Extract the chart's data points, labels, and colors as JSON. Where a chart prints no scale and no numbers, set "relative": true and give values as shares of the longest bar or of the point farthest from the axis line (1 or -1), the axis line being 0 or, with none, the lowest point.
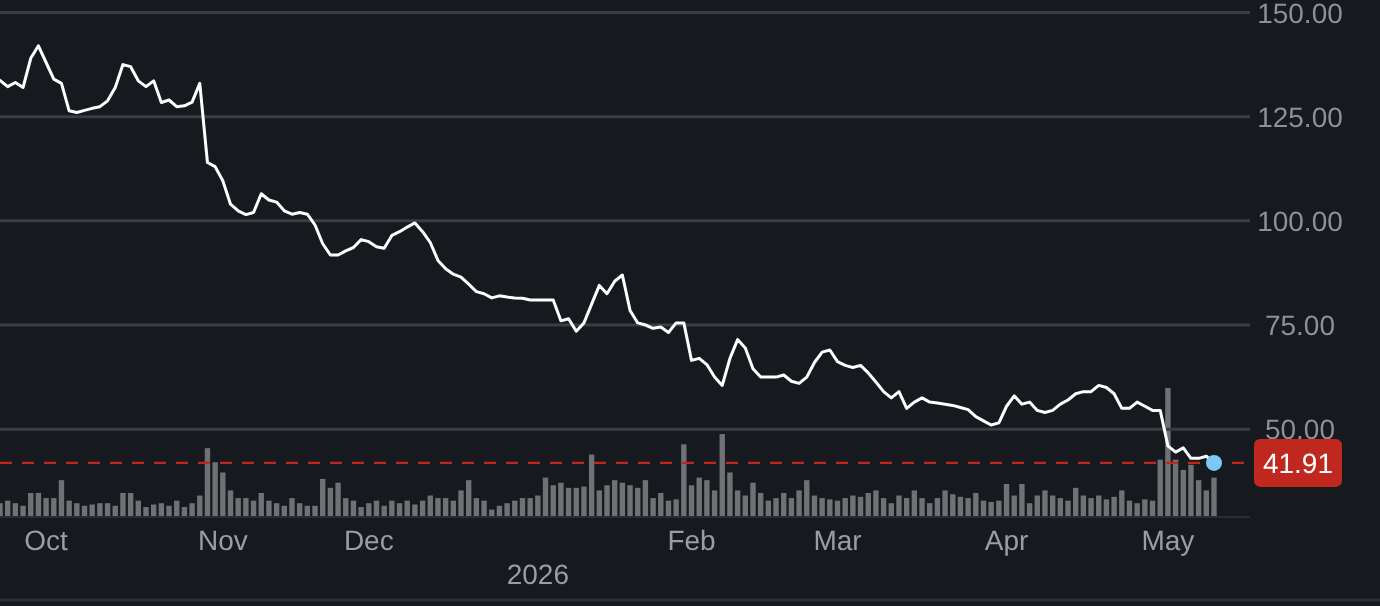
{
  "chart_data": [
    {
      "type": "line",
      "categories": [
        null,
        null,
        null,
        null,
        null,
        null,
        "Oct",
        null,
        null,
        null,
        null,
        null,
        null,
        null,
        null,
        null,
        null,
        null,
        null,
        null,
        null,
        null,
        null,
        null,
        null,
        null,
        null,
        null,
        null,
        "Nov",
        null,
        null,
        null,
        null,
        null,
        null,
        null,
        null,
        null,
        null,
        null,
        null,
        null,
        null,
        null,
        null,
        null,
        null,
        "Dec",
        null,
        null,
        null,
        null,
        null,
        null,
        null,
        null,
        null,
        null,
        null,
        null,
        null,
        null,
        null,
        null,
        null,
        null,
        null,
        null,
        null,
        "2026",
        null,
        null,
        null,
        null,
        null,
        null,
        null,
        null,
        null,
        null,
        null,
        null,
        null,
        null,
        null,
        null,
        null,
        null,
        null,
        "Feb",
        null,
        null,
        null,
        null,
        null,
        null,
        null,
        null,
        null,
        null,
        null,
        null,
        null,
        null,
        null,
        null,
        null,
        null,
        "Mar",
        null,
        null,
        null,
        null,
        null,
        null,
        null,
        null,
        null,
        null,
        null,
        null,
        null,
        null,
        null,
        null,
        null,
        null,
        null,
        null,
        null,
        "Apr",
        null,
        null,
        null,
        null,
        null,
        null,
        null,
        null,
        null,
        null,
        null,
        null,
        null,
        null,
        null,
        null,
        null,
        null,
        null,
        null,
        "May",
        null,
        null,
        null,
        null,
        null,
        null
      ],
      "series": [
        {
          "color": "#ffffff",
          "values": [
            133.7,
            132.2,
            133.2,
            132,
            139,
            142,
            138,
            134,
            133,
            126.4,
            126,
            126.5,
            127,
            127.4,
            128.8,
            132,
            137.5,
            137,
            133.6,
            132.2,
            133.6,
            128.4,
            129,
            127.4,
            127.6,
            128.5,
            133,
            114,
            113,
            109.6,
            104,
            102.4,
            101.5,
            102,
            106.5,
            105,
            104.5,
            102.4,
            101.6,
            102,
            101.6,
            99,
            94.5,
            91.8,
            91.8,
            92.8,
            93.6,
            95.5,
            95,
            93.8,
            93.4,
            96.5,
            97.4,
            98.5,
            99.5,
            97.4,
            94.8,
            90.5,
            88.5,
            87.2,
            86.5,
            84.8,
            83,
            82.5,
            81.5,
            82,
            81.7,
            81.5,
            81.4,
            81,
            81,
            81,
            81,
            76,
            76.5,
            73.5,
            75.5,
            80,
            84.5,
            82.5,
            85.5,
            87,
            78.5,
            75.5,
            75,
            74.2,
            74.5,
            73.2,
            75.5,
            75.5,
            66.5,
            67,
            65.5,
            62.5,
            60.5,
            67,
            71.5,
            69.5,
            64.5,
            62.5,
            62.5,
            62.5,
            63,
            61.5,
            61,
            62.5,
            66,
            68.5,
            69,
            66.2,
            65.3,
            64.8,
            65.3,
            63.5,
            61.3,
            59,
            57.5,
            59,
            55,
            56.5,
            57.5,
            56.5,
            56.3,
            56,
            55.7,
            55.2,
            54.7,
            53,
            52,
            51,
            51.5,
            55.5,
            58,
            56,
            56.5,
            54.5,
            54,
            54.5,
            56,
            57,
            58.5,
            59,
            59,
            60.5,
            60,
            58.5,
            55,
            55,
            56.5,
            55.5,
            54.5,
            54.5,
            46,
            44.5,
            45.5,
            43,
            43,
            43.5,
            41.91
          ]
        },
        {
          "type": "scatter",
          "marker": "circle",
          "color": "#7cc8f8",
          "values": [
            null,
            null,
            null,
            null,
            null,
            null,
            null,
            null,
            null,
            null,
            null,
            null,
            null,
            null,
            null,
            null,
            null,
            null,
            null,
            null,
            null,
            null,
            null,
            null,
            null,
            null,
            null,
            null,
            null,
            null,
            null,
            null,
            null,
            null,
            null,
            null,
            null,
            null,
            null,
            null,
            null,
            null,
            null,
            null,
            null,
            null,
            null,
            null,
            null,
            null,
            null,
            null,
            null,
            null,
            null,
            null,
            null,
            null,
            null,
            null,
            null,
            null,
            null,
            null,
            null,
            null,
            null,
            null,
            null,
            null,
            null,
            null,
            null,
            null,
            null,
            null,
            null,
            null,
            null,
            null,
            null,
            null,
            null,
            null,
            null,
            null,
            null,
            null,
            null,
            null,
            null,
            null,
            null,
            null,
            null,
            null,
            null,
            null,
            null,
            null,
            null,
            null,
            null,
            null,
            null,
            null,
            null,
            null,
            null,
            null,
            null,
            null,
            null,
            null,
            null,
            null,
            null,
            null,
            null,
            null,
            null,
            null,
            null,
            null,
            null,
            null,
            null,
            null,
            null,
            null,
            null,
            null,
            null,
            null,
            null,
            null,
            null,
            null,
            null,
            null,
            null,
            null,
            null,
            null,
            null,
            null,
            null,
            null,
            null,
            null,
            null,
            null,
            null,
            null,
            null,
            null,
            null,
            null,
            41.91
          ]
        }
      ],
      "ylim": [
        9,
        153
      ],
      "yticks": [
        {
          "value": 50,
          "label": "50.00"
        },
        {
          "value": 75,
          "label": "75.00"
        },
        {
          "value": 100,
          "label": "100.00"
        },
        {
          "value": 125,
          "label": "125.00"
        },
        {
          "value": 150,
          "label": "150.00"
        }
      ],
      "grid": "y",
      "ref_lines": [
        {
          "axis": "y",
          "value": 41.91,
          "label": "41.91",
          "color": "#c0281f",
          "line_style": "dashed"
        }
      ]
    },
    {
      "type": "bar",
      "relative": true,
      "color": "#6f7175",
      "categories": [
        null,
        null,
        null,
        null,
        null,
        null,
        null,
        null,
        null,
        null,
        null,
        null,
        null,
        null,
        null,
        null,
        null,
        null,
        null,
        null,
        null,
        null,
        null,
        null,
        null,
        null,
        null,
        null,
        null,
        null,
        null,
        null,
        null,
        null,
        null,
        null,
        null,
        null,
        null,
        null,
        null,
        null,
        null,
        null,
        null,
        null,
        null,
        null,
        null,
        null,
        null,
        null,
        null,
        null,
        null,
        null,
        null,
        null,
        null,
        null,
        null,
        null,
        null,
        null,
        null,
        null,
        null,
        null,
        null,
        null,
        null,
        null,
        null,
        null,
        null,
        null,
        null,
        null,
        null,
        null,
        null,
        null,
        null,
        null,
        null,
        null,
        null,
        null,
        null,
        null,
        null,
        null,
        null,
        null,
        null,
        null,
        null,
        null,
        null,
        null,
        null,
        null,
        null,
        null,
        null,
        null,
        null,
        null,
        null,
        null,
        null,
        null,
        null,
        null,
        null,
        null,
        null,
        null,
        null,
        null,
        null,
        null,
        null,
        null,
        null,
        null,
        null,
        null,
        null,
        null,
        null,
        null,
        null,
        null,
        null,
        null,
        null,
        null,
        null,
        null,
        null,
        null,
        null,
        null,
        null,
        null,
        null,
        null,
        null,
        null,
        null,
        null,
        null,
        null,
        null,
        null,
        null,
        null,
        null
      ],
      "values": [
        0.1,
        0.12,
        0.1,
        0.08,
        0.18,
        0.18,
        0.14,
        0.14,
        0.28,
        0.12,
        0.1,
        0.08,
        0.09,
        0.1,
        0.1,
        0.08,
        0.18,
        0.18,
        0.12,
        0.07,
        0.09,
        0.1,
        0.08,
        0.12,
        0.07,
        0.1,
        0.16,
        0.53,
        0.42,
        0.34,
        0.2,
        0.14,
        0.14,
        0.12,
        0.18,
        0.12,
        0.1,
        0.08,
        0.14,
        0.1,
        0.08,
        0.08,
        0.29,
        0.22,
        0.26,
        0.14,
        0.12,
        0.07,
        0.1,
        0.12,
        0.08,
        0.12,
        0.1,
        0.12,
        0.09,
        0.12,
        0.16,
        0.14,
        0.14,
        0.12,
        0.2,
        0.28,
        0.14,
        0.12,
        0.05,
        0.08,
        0.1,
        0.12,
        0.14,
        0.14,
        0.16,
        0.3,
        0.24,
        0.26,
        0.22,
        0.22,
        0.23,
        0.48,
        0.2,
        0.24,
        0.28,
        0.26,
        0.24,
        0.22,
        0.28,
        0.14,
        0.18,
        0.12,
        0.13,
        0.56,
        0.24,
        0.3,
        0.28,
        0.2,
        0.64,
        0.34,
        0.2,
        0.16,
        0.26,
        0.18,
        0.12,
        0.14,
        0.18,
        0.14,
        0.2,
        0.28,
        0.16,
        0.14,
        0.13,
        0.12,
        0.14,
        0.16,
        0.15,
        0.18,
        0.2,
        0.14,
        0.1,
        0.16,
        0.14,
        0.2,
        0.14,
        0.1,
        0.14,
        0.2,
        0.17,
        0.15,
        0.14,
        0.18,
        0.12,
        0.11,
        0.12,
        0.25,
        0.16,
        0.25,
        0.1,
        0.16,
        0.2,
        0.16,
        0.14,
        0.12,
        0.22,
        0.16,
        0.14,
        0.16,
        0.13,
        0.15,
        0.2,
        0.12,
        0.1,
        0.13,
        0.12,
        0.44,
        1,
        0.44,
        0.36,
        0.4,
        0.28,
        0.2,
        0.3
      ]
    }
  ]
}
